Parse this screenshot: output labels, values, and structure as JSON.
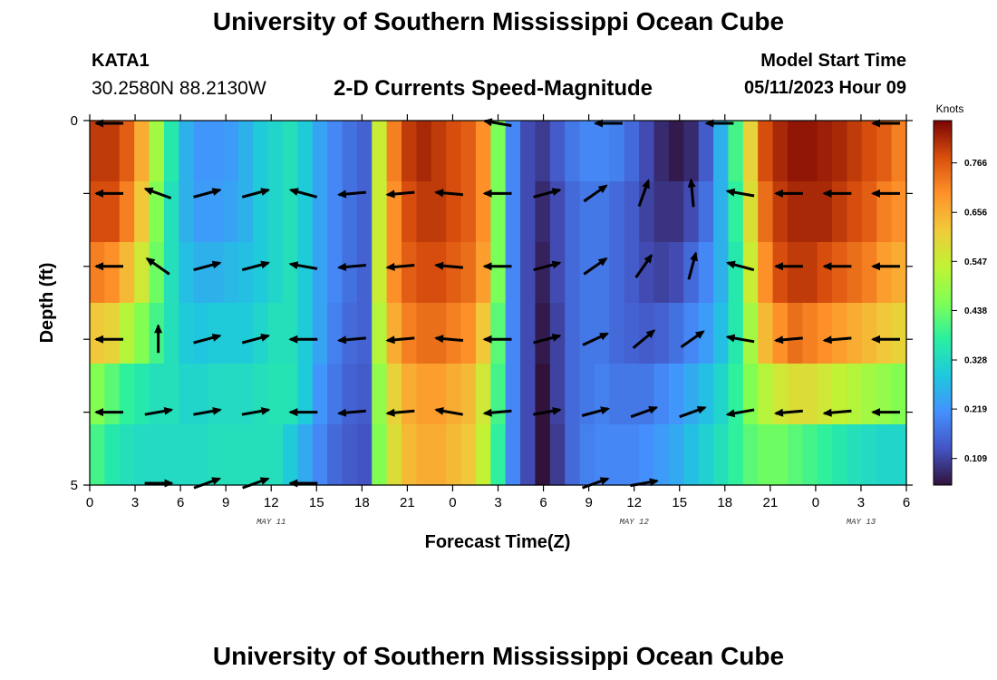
{
  "header": {
    "title": "University of Southern Mississippi Ocean Cube",
    "station_id": "KATA1",
    "station_coords": "30.2580N  88.2130W",
    "subtitle": "2-D Currents Speed-Magnitude",
    "model_label": "Model Start Time",
    "model_time": "05/11/2023 Hour 09"
  },
  "footer": {
    "title": "University of Southern Mississippi Ocean Cube"
  },
  "chart_data": {
    "type": "heatmap",
    "title": "2-D Currents Speed-Magnitude",
    "xlabel": "Forecast Time(Z)",
    "ylabel": "Depth (ft)",
    "units": "Knots",
    "x_hours_range": [
      0,
      54
    ],
    "y_range": [
      0,
      5
    ],
    "x_tick_labels": [
      "0",
      "3",
      "6",
      "9",
      "12",
      "15",
      "18",
      "21",
      "0",
      "3",
      "6",
      "9",
      "12",
      "15",
      "18",
      "21",
      "0",
      "3",
      "6"
    ],
    "y_tick_labels": [
      "0",
      "5"
    ],
    "date_labels": [
      {
        "label": "MAY 11",
        "hour": 12
      },
      {
        "label": "MAY 12",
        "hour": 36
      },
      {
        "label": "MAY 13",
        "hour": 51
      }
    ],
    "colorbar": {
      "label": "Knots",
      "range": [
        0.05,
        0.86
      ],
      "ticks": [
        "0.766",
        "0.656",
        "0.547",
        "0.438",
        "0.328",
        "0.219",
        "0.109"
      ]
    },
    "speed_hourly_by_row": [
      [
        0.8,
        0.8,
        0.76,
        0.66,
        0.5,
        0.36,
        0.26,
        0.22,
        0.22,
        0.23,
        0.26,
        0.3,
        0.32,
        0.34,
        0.3,
        0.24,
        0.2,
        0.17,
        0.15,
        0.55,
        0.72,
        0.8,
        0.82,
        0.8,
        0.78,
        0.76,
        0.7,
        0.45,
        0.2,
        0.12,
        0.1,
        0.14,
        0.18,
        0.2,
        0.2,
        0.19,
        0.16,
        0.12,
        0.08,
        0.06,
        0.08,
        0.14,
        0.26,
        0.4,
        0.6,
        0.78,
        0.82,
        0.84,
        0.84,
        0.83,
        0.82,
        0.8,
        0.78,
        0.76,
        0.72
      ],
      [
        0.78,
        0.78,
        0.72,
        0.62,
        0.46,
        0.34,
        0.26,
        0.23,
        0.23,
        0.24,
        0.26,
        0.3,
        0.32,
        0.34,
        0.3,
        0.24,
        0.2,
        0.17,
        0.15,
        0.55,
        0.7,
        0.78,
        0.8,
        0.8,
        0.78,
        0.76,
        0.7,
        0.45,
        0.2,
        0.12,
        0.08,
        0.12,
        0.16,
        0.18,
        0.18,
        0.16,
        0.14,
        0.11,
        0.09,
        0.09,
        0.12,
        0.17,
        0.26,
        0.38,
        0.58,
        0.74,
        0.8,
        0.82,
        0.82,
        0.82,
        0.8,
        0.78,
        0.76,
        0.72,
        0.7
      ],
      [
        0.72,
        0.7,
        0.64,
        0.56,
        0.44,
        0.34,
        0.28,
        0.26,
        0.26,
        0.27,
        0.28,
        0.3,
        0.32,
        0.34,
        0.3,
        0.24,
        0.2,
        0.17,
        0.15,
        0.55,
        0.7,
        0.76,
        0.78,
        0.78,
        0.76,
        0.74,
        0.68,
        0.45,
        0.2,
        0.12,
        0.07,
        0.12,
        0.16,
        0.18,
        0.18,
        0.16,
        0.14,
        0.12,
        0.11,
        0.12,
        0.16,
        0.2,
        0.26,
        0.36,
        0.55,
        0.7,
        0.78,
        0.8,
        0.8,
        0.78,
        0.76,
        0.74,
        0.72,
        0.68,
        0.66
      ],
      [
        0.62,
        0.6,
        0.52,
        0.46,
        0.4,
        0.34,
        0.3,
        0.29,
        0.3,
        0.3,
        0.3,
        0.32,
        0.34,
        0.34,
        0.3,
        0.24,
        0.19,
        0.16,
        0.15,
        0.52,
        0.66,
        0.72,
        0.74,
        0.74,
        0.72,
        0.7,
        0.62,
        0.42,
        0.2,
        0.12,
        0.06,
        0.11,
        0.16,
        0.18,
        0.18,
        0.16,
        0.15,
        0.14,
        0.15,
        0.17,
        0.2,
        0.23,
        0.28,
        0.36,
        0.5,
        0.64,
        0.7,
        0.74,
        0.72,
        0.7,
        0.68,
        0.66,
        0.64,
        0.62,
        0.6
      ],
      [
        0.46,
        0.42,
        0.38,
        0.36,
        0.34,
        0.34,
        0.32,
        0.32,
        0.33,
        0.33,
        0.33,
        0.34,
        0.35,
        0.35,
        0.3,
        0.22,
        0.18,
        0.15,
        0.14,
        0.48,
        0.6,
        0.66,
        0.68,
        0.68,
        0.66,
        0.64,
        0.56,
        0.4,
        0.2,
        0.12,
        0.05,
        0.11,
        0.16,
        0.18,
        0.19,
        0.18,
        0.18,
        0.18,
        0.2,
        0.22,
        0.25,
        0.28,
        0.32,
        0.38,
        0.46,
        0.52,
        0.56,
        0.58,
        0.58,
        0.56,
        0.54,
        0.52,
        0.5,
        0.48,
        0.46
      ],
      [
        0.4,
        0.36,
        0.34,
        0.33,
        0.33,
        0.33,
        0.33,
        0.33,
        0.34,
        0.34,
        0.34,
        0.34,
        0.34,
        0.3,
        0.25,
        0.2,
        0.16,
        0.14,
        0.13,
        0.46,
        0.58,
        0.64,
        0.66,
        0.66,
        0.64,
        0.62,
        0.54,
        0.38,
        0.2,
        0.12,
        0.02,
        0.1,
        0.16,
        0.19,
        0.2,
        0.2,
        0.2,
        0.21,
        0.23,
        0.25,
        0.28,
        0.31,
        0.34,
        0.38,
        0.42,
        0.44,
        0.44,
        0.42,
        0.4,
        0.38,
        0.36,
        0.34,
        0.33,
        0.32,
        0.32
      ]
    ],
    "vector_directions_deg_by_row": [
      [
        180,
        null,
        null,
        null,
        null,
        null,
        null,
        170,
        null,
        180,
        null,
        180,
        null,
        null,
        180
      ],
      [
        180,
        160,
        15,
        15,
        165,
        185,
        185,
        175,
        180,
        15,
        35,
        70,
        95,
        170,
        180,
        180,
        180
      ],
      [
        180,
        145,
        15,
        15,
        170,
        185,
        185,
        175,
        180,
        15,
        35,
        55,
        75,
        165,
        180,
        180,
        180
      ],
      [
        180,
        90,
        15,
        15,
        180,
        185,
        185,
        175,
        180,
        15,
        25,
        40,
        35,
        170,
        185,
        185,
        180
      ],
      [
        180,
        10,
        10,
        10,
        180,
        185,
        185,
        170,
        185,
        10,
        15,
        20,
        20,
        190,
        185,
        185,
        180
      ],
      [
        null,
        0,
        20,
        20,
        180,
        null,
        null,
        null,
        null,
        null,
        20,
        10,
        null,
        null,
        null,
        null,
        null
      ]
    ]
  }
}
